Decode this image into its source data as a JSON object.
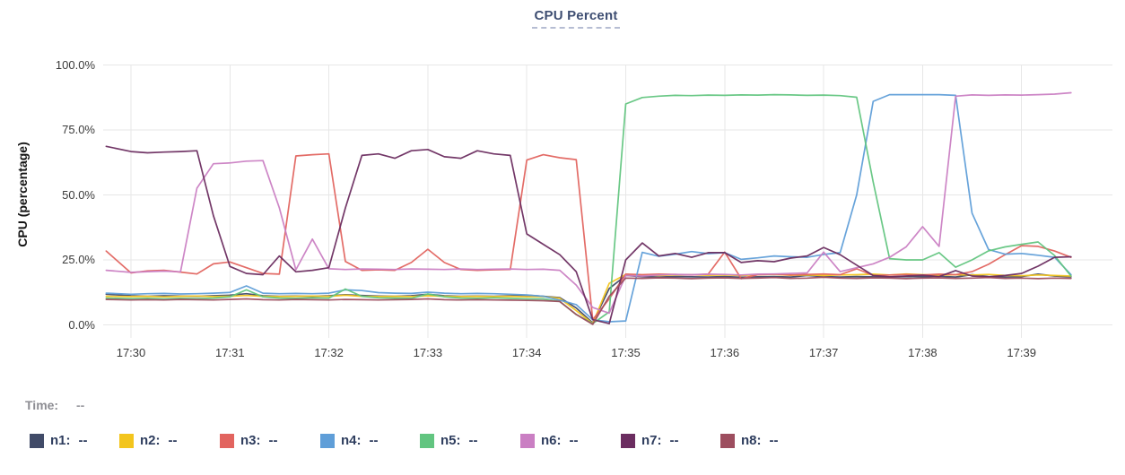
{
  "title": "CPU Percent",
  "y_axis": {
    "label": "CPU (percentage)",
    "ticks": [
      {
        "text": "100.0%",
        "pct": 100
      },
      {
        "text": "75.0%",
        "pct": 75
      },
      {
        "text": "50.0%",
        "pct": 50
      },
      {
        "text": "25.0%",
        "pct": 25
      },
      {
        "text": "0.0%",
        "pct": 0
      }
    ]
  },
  "x_axis": {
    "ticks": [
      "17:30",
      "17:31",
      "17:32",
      "17:33",
      "17:34",
      "17:35",
      "17:36",
      "17:37",
      "17:38",
      "17:39"
    ]
  },
  "time_row": {
    "label": "Time:",
    "value": "--"
  },
  "legend": [
    {
      "label": "n1:",
      "value": "--",
      "color": "#414b68"
    },
    {
      "label": "n2:",
      "value": "--",
      "color": "#f3c51d"
    },
    {
      "label": "n3:",
      "value": "--",
      "color": "#e2645f"
    },
    {
      "label": "n4:",
      "value": "--",
      "color": "#5f9ed8"
    },
    {
      "label": "n5:",
      "value": "--",
      "color": "#62c580"
    },
    {
      "label": "n6:",
      "value": "--",
      "color": "#ca7fc3"
    },
    {
      "label": "n7:",
      "value": "--",
      "color": "#6b2d60"
    },
    {
      "label": "n8:",
      "value": "--",
      "color": "#9d4e5f"
    }
  ],
  "chart_data": {
    "type": "line",
    "title": "CPU Percent",
    "xlabel": "",
    "ylabel": "CPU (percentage)",
    "ylim": [
      0,
      100
    ],
    "grid": true,
    "legend_position": "bottom-left",
    "x_ticks": [
      "17:30",
      "17:31",
      "17:32",
      "17:33",
      "17:34",
      "17:35",
      "17:36",
      "17:37",
      "17:38",
      "17:39"
    ],
    "y_ticks_pct": [
      0,
      25,
      50,
      75,
      100
    ],
    "x_start": "17:29:45",
    "x_end": "17:39:30",
    "first_interval_s": 15,
    "sample_interval_s": 10,
    "series": [
      {
        "name": "n1",
        "color": "#414b68",
        "values": [
          11.8,
          11.2,
          11.0,
          11.2,
          11.1,
          11.0,
          11.2,
          11.4,
          12.0,
          11.2,
          11.0,
          11.1,
          11.0,
          11.2,
          11.6,
          11.3,
          11.1,
          11.0,
          11.2,
          11.8,
          11.2,
          11.0,
          11.1,
          11.0,
          11.2,
          11.4,
          11.0,
          10.5,
          6.5,
          0.8,
          14.0,
          19.0,
          18.6,
          18.4,
          18.6,
          18.5,
          18.4,
          18.6,
          18.3,
          18.5,
          18.6,
          18.4,
          19.0,
          18.6,
          18.4,
          18.6,
          18.5,
          18.4,
          18.6,
          18.5,
          18.7,
          18.4,
          19.3,
          18.6,
          18.4,
          18.6,
          19.5,
          18.8,
          18.5
        ]
      },
      {
        "name": "n2",
        "color": "#f3c51d",
        "values": [
          11.0,
          10.9,
          11.0,
          10.8,
          11.0,
          11.1,
          10.9,
          11.0,
          11.3,
          11.0,
          10.9,
          11.0,
          11.1,
          11.0,
          11.4,
          11.0,
          10.9,
          11.0,
          10.9,
          11.2,
          11.0,
          10.9,
          11.0,
          10.9,
          11.0,
          10.8,
          10.9,
          10.2,
          5.5,
          0.5,
          16.0,
          19.4,
          19.2,
          19.0,
          19.2,
          19.3,
          19.1,
          19.2,
          19.0,
          19.3,
          19.4,
          19.1,
          19.2,
          19.0,
          19.2,
          19.3,
          19.5,
          19.2,
          19.6,
          19.3,
          19.1,
          19.3,
          19.2,
          19.4,
          19.0,
          18.9,
          19.2,
          19.0,
          18.8
        ]
      },
      {
        "name": "n3",
        "color": "#e2645f",
        "values": [
          28.4,
          20.0,
          20.8,
          21.0,
          20.3,
          19.6,
          23.5,
          24.2,
          22.0,
          19.8,
          19.5,
          65.0,
          65.5,
          65.8,
          24.4,
          21.0,
          21.2,
          21.0,
          24.0,
          29.1,
          24.0,
          21.3,
          21.0,
          21.2,
          21.3,
          63.4,
          65.5,
          64.3,
          63.6,
          2.0,
          10.0,
          19.5,
          19.3,
          19.5,
          19.4,
          19.2,
          19.5,
          28.0,
          17.8,
          19.3,
          19.5,
          19.2,
          19.4,
          19.6,
          19.3,
          21.6,
          19.0,
          19.2,
          19.4,
          19.2,
          19.5,
          19.3,
          20.5,
          23.3,
          27.0,
          30.5,
          30.2,
          28.4,
          26.0
        ]
      },
      {
        "name": "n4",
        "color": "#5f9ed8",
        "values": [
          12.2,
          11.8,
          12.0,
          12.1,
          11.9,
          12.0,
          12.2,
          12.5,
          15.0,
          12.2,
          12.0,
          12.1,
          12.0,
          12.2,
          13.5,
          13.2,
          12.4,
          12.2,
          12.1,
          12.6,
          12.2,
          12.0,
          12.1,
          12.0,
          11.8,
          11.5,
          11.0,
          9.5,
          7.8,
          2.0,
          1.2,
          1.5,
          27.9,
          26.4,
          27.2,
          28.2,
          27.4,
          27.8,
          25.2,
          25.8,
          26.5,
          26.2,
          26.0,
          27.1,
          27.8,
          50.0,
          86.0,
          88.6,
          88.6,
          88.6,
          88.6,
          88.3,
          43.0,
          29.0,
          27.2,
          27.5,
          26.8,
          26.0,
          19.3
        ]
      },
      {
        "name": "n5",
        "color": "#62c580",
        "values": [
          10.3,
          10.1,
          10.2,
          10.0,
          10.2,
          10.1,
          10.3,
          10.8,
          13.5,
          10.8,
          10.3,
          10.2,
          10.4,
          10.3,
          13.8,
          11.0,
          10.4,
          10.3,
          10.2,
          11.9,
          10.8,
          10.3,
          10.2,
          10.4,
          10.2,
          10.0,
          10.0,
          9.0,
          4.0,
          0.5,
          5.0,
          85.0,
          87.5,
          88.0,
          88.3,
          88.2,
          88.4,
          88.3,
          88.5,
          88.4,
          88.6,
          88.5,
          88.3,
          88.4,
          88.2,
          87.6,
          55.0,
          25.5,
          25.0,
          25.0,
          27.8,
          22.2,
          25.0,
          28.5,
          30.0,
          31.0,
          31.9,
          26.7,
          18.8
        ]
      },
      {
        "name": "n6",
        "color": "#ca7fc3",
        "values": [
          21.0,
          20.2,
          20.5,
          20.7,
          20.4,
          52.6,
          62.0,
          62.3,
          63.0,
          63.2,
          45.0,
          21.2,
          33.0,
          21.6,
          21.3,
          21.5,
          21.4,
          21.3,
          21.5,
          21.4,
          21.3,
          21.5,
          21.3,
          21.4,
          21.5,
          21.3,
          21.4,
          21.0,
          15.3,
          6.7,
          4.5,
          19.0,
          18.8,
          19.2,
          19.4,
          19.3,
          19.5,
          19.4,
          19.2,
          19.5,
          19.6,
          19.8,
          20.0,
          28.0,
          20.5,
          22.0,
          23.5,
          26.0,
          30.0,
          37.8,
          30.2,
          88.0,
          88.5,
          88.3,
          88.5,
          88.4,
          88.6,
          88.8,
          89.3
        ]
      },
      {
        "name": "n7",
        "color": "#6b2d60",
        "values": [
          68.7,
          66.7,
          66.2,
          66.5,
          66.7,
          67.0,
          42.0,
          22.5,
          19.8,
          19.3,
          26.5,
          20.4,
          21.0,
          22.0,
          45.0,
          65.2,
          65.8,
          64.1,
          67.0,
          67.5,
          64.7,
          64.1,
          67.0,
          65.8,
          65.2,
          35.0,
          31.0,
          27.0,
          20.5,
          2.0,
          0.5,
          25.0,
          31.5,
          26.5,
          27.5,
          26.0,
          27.8,
          27.8,
          24.0,
          24.7,
          24.3,
          25.7,
          26.5,
          29.8,
          27.0,
          23.0,
          19.0,
          18.5,
          18.8,
          19.1,
          18.6,
          20.9,
          18.8,
          18.5,
          19.0,
          19.8,
          22.6,
          26.0,
          26.2
        ]
      },
      {
        "name": "n8",
        "color": "#9d4e5f",
        "values": [
          9.8,
          9.6,
          9.7,
          9.6,
          9.8,
          9.7,
          9.6,
          9.8,
          10.0,
          9.7,
          9.6,
          9.8,
          9.7,
          9.6,
          9.8,
          9.7,
          9.6,
          9.7,
          9.8,
          10.0,
          9.7,
          9.6,
          9.7,
          9.6,
          9.5,
          9.4,
          9.3,
          9.0,
          4.0,
          0.2,
          11.0,
          18.0,
          17.9,
          18.1,
          18.0,
          17.8,
          18.0,
          18.1,
          17.9,
          18.0,
          18.2,
          17.9,
          18.0,
          18.3,
          18.0,
          17.9,
          18.1,
          18.0,
          17.8,
          18.0,
          18.1,
          17.9,
          18.0,
          18.2,
          17.9,
          18.0,
          17.8,
          18.0,
          17.9
        ]
      }
    ]
  }
}
